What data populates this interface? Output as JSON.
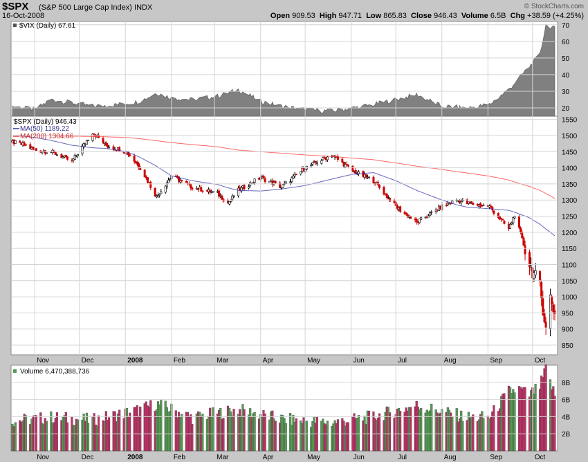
{
  "header": {
    "symbol": "$SPX",
    "name": "(S&P 500 Large Cap Index)",
    "exchange": "INDX",
    "date": "16-Oct-2008",
    "brand": "© StockCharts.com",
    "open_label": "Open",
    "open": "909.53",
    "high_label": "High",
    "high": "947.71",
    "low_label": "Low",
    "low": "865.83",
    "close_label": "Close",
    "close": "946.43",
    "volume_label": "Volume",
    "volume": "6.5B",
    "chg_label": "Chg",
    "chg": "+38.59 (+4.25%)"
  },
  "colors": {
    "up": "#000000",
    "down": "#cc0000",
    "ma50": "#3333aa",
    "ma200": "#ff3333",
    "vix_fill": "#808080",
    "vol_up": "#559955",
    "vol_down": "#bb3366",
    "grid": "#d4d4d4"
  },
  "chart_data": [
    {
      "type": "area",
      "series": [
        {
          "name": "$VIX (Daily)",
          "last": "67.61"
        }
      ],
      "x": [
        "2007-10-17",
        "2007-11-01",
        "2007-11-12",
        "2007-11-26",
        "2007-12-10",
        "2007-12-27",
        "2008-01-11",
        "2008-01-22",
        "2008-02-01",
        "2008-02-15",
        "2008-03-03",
        "2008-03-17",
        "2008-04-01",
        "2008-04-15",
        "2008-05-01",
        "2008-05-19",
        "2008-06-02",
        "2008-06-16",
        "2008-07-01",
        "2008-07-15",
        "2008-08-01",
        "2008-08-18",
        "2008-09-02",
        "2008-09-15",
        "2008-09-29",
        "2008-10-06",
        "2008-10-10",
        "2008-10-16"
      ],
      "values": [
        21,
        19,
        25,
        23,
        21,
        22,
        24,
        29,
        26,
        25,
        27,
        31,
        24,
        21,
        19,
        18,
        20,
        22,
        25,
        28,
        21,
        20,
        22,
        31,
        45,
        52,
        70,
        67.61
      ],
      "ylim": [
        15,
        72
      ],
      "yticks": [
        "20",
        "30",
        "40",
        "50",
        "60",
        "70"
      ]
    },
    {
      "type": "candlestick",
      "title": "$SPX (Daily)",
      "last": "946.43",
      "series": [
        {
          "name": "MA(50)",
          "last": "1189.22"
        },
        {
          "name": "MA(200)",
          "last": "1304.66"
        }
      ],
      "x": [
        "2007-10-17",
        "2007-10-25",
        "2007-11-01",
        "2007-11-12",
        "2007-11-26",
        "2007-12-10",
        "2007-12-19",
        "2008-01-02",
        "2008-01-11",
        "2008-01-22",
        "2008-02-01",
        "2008-02-15",
        "2008-03-03",
        "2008-03-10",
        "2008-03-17",
        "2008-04-01",
        "2008-04-15",
        "2008-05-01",
        "2008-05-19",
        "2008-06-02",
        "2008-06-16",
        "2008-07-01",
        "2008-07-15",
        "2008-08-01",
        "2008-08-11",
        "2008-08-18",
        "2008-09-02",
        "2008-09-15",
        "2008-09-19",
        "2008-09-29",
        "2008-10-06",
        "2008-10-10",
        "2008-10-13",
        "2008-10-16"
      ],
      "close": [
        1480,
        1470,
        1455,
        1450,
        1420,
        1510,
        1470,
        1450,
        1400,
        1310,
        1375,
        1340,
        1320,
        1290,
        1330,
        1370,
        1340,
        1400,
        1440,
        1390,
        1360,
        1280,
        1230,
        1280,
        1300,
        1290,
        1280,
        1210,
        1255,
        1100,
        1030,
        900,
        1000,
        946
      ],
      "ma50": [
        1500,
        1498,
        1494,
        1485,
        1470,
        1462,
        1460,
        1450,
        1432,
        1405,
        1375,
        1360,
        1348,
        1338,
        1330,
        1328,
        1334,
        1345,
        1365,
        1380,
        1385,
        1360,
        1330,
        1300,
        1285,
        1278,
        1273,
        1268,
        1262,
        1245,
        1225,
        1210,
        1200,
        1189.22
      ],
      "ma200": [
        1500,
        1500,
        1500,
        1499,
        1498,
        1497,
        1496,
        1494,
        1490,
        1484,
        1478,
        1472,
        1465,
        1460,
        1455,
        1450,
        1445,
        1440,
        1435,
        1430,
        1425,
        1415,
        1405,
        1395,
        1388,
        1384,
        1374,
        1362,
        1356,
        1342,
        1330,
        1320,
        1313,
        1304.66
      ],
      "ylim": [
        820,
        1560
      ],
      "yticks": [
        "850",
        "900",
        "950",
        "1000",
        "1050",
        "1100",
        "1150",
        "1200",
        "1250",
        "1300",
        "1350",
        "1400",
        "1450",
        "1500",
        "1550"
      ],
      "xticks": [
        "Nov",
        "Dec",
        "2008",
        "Feb",
        "Mar",
        "Apr",
        "May",
        "Jun",
        "Jul",
        "Aug",
        "Sep",
        "Oct"
      ]
    },
    {
      "type": "bar",
      "title": "Volume",
      "last": "6,470,388,736",
      "x": [
        "2007-10-17",
        "2007-11-12",
        "2007-12-10",
        "2008-01-11",
        "2008-01-22",
        "2008-02-15",
        "2008-03-17",
        "2008-04-15",
        "2008-05-19",
        "2008-06-16",
        "2008-07-15",
        "2008-08-18",
        "2008-09-02",
        "2008-09-15",
        "2008-09-22",
        "2008-09-29",
        "2008-10-06",
        "2008-10-10",
        "2008-10-16"
      ],
      "values": [
        3.5,
        3.9,
        3.6,
        4.8,
        5.5,
        3.9,
        4.8,
        3.7,
        3.3,
        4.0,
        5.3,
        3.9,
        3.9,
        6.9,
        7.2,
        6.5,
        7.5,
        9.5,
        6.47
      ],
      "ylim": [
        0,
        10
      ],
      "yticks": [
        "2B",
        "4B",
        "6B",
        "8B"
      ],
      "xticks": [
        "Nov",
        "Dec",
        "2008",
        "Feb",
        "Mar",
        "Apr",
        "May",
        "Jun",
        "Jul",
        "Aug",
        "Sep",
        "Oct"
      ]
    }
  ]
}
